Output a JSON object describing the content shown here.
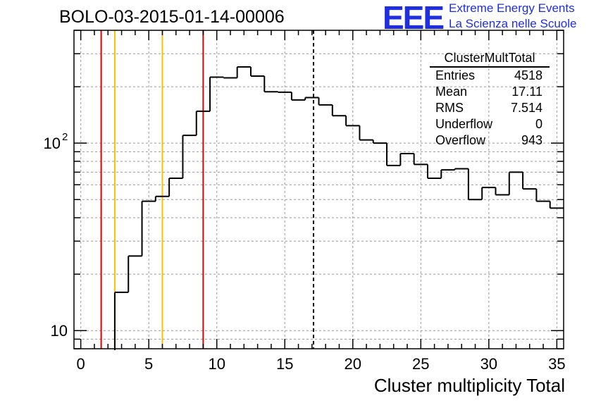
{
  "header": {
    "title": "BOLO-03-2015-01-14-00006",
    "logo_text": "EEE",
    "logo_line1": "Extreme Energy Events",
    "logo_line2": "La Scienza nelle Scuole"
  },
  "stats": {
    "name": "ClusterMultTotal",
    "rows": [
      {
        "label": "Entries",
        "value": "4518"
      },
      {
        "label": "Mean",
        "value": "17.11"
      },
      {
        "label": "RMS",
        "value": "7.514"
      },
      {
        "label": "Underflow",
        "value": "0"
      },
      {
        "label": "Overflow",
        "value": "943"
      }
    ]
  },
  "chart_data": {
    "type": "histogram",
    "xlabel": "Cluster multiplicity Total",
    "ylabel": "",
    "x_range": [
      -0.5,
      35.5
    ],
    "y_range": [
      8,
      400
    ],
    "y_scale": "log",
    "grid": true,
    "bin_width": 1,
    "bin_lows": [
      -0.5,
      0.5,
      1.5,
      2.5,
      3.5,
      4.5,
      5.5,
      6.5,
      7.5,
      8.5,
      9.5,
      10.5,
      11.5,
      12.5,
      13.5,
      14.5,
      15.5,
      16.5,
      17.5,
      18.5,
      19.5,
      20.5,
      21.5,
      22.5,
      23.5,
      24.5,
      25.5,
      26.5,
      27.5,
      28.5,
      29.5,
      30.5,
      31.5,
      32.5,
      33.5,
      34.5
    ],
    "counts": [
      0,
      0,
      0,
      16,
      25,
      49,
      52,
      65,
      110,
      148,
      225,
      223,
      255,
      228,
      188,
      187,
      170,
      175,
      160,
      140,
      124,
      104,
      100,
      76,
      88,
      77,
      65,
      72,
      73,
      50,
      58,
      53,
      70,
      57,
      49,
      45
    ],
    "x_ticks": [
      0,
      5,
      10,
      15,
      20,
      25,
      30,
      35
    ],
    "x_tick_labels": [
      "0",
      "5",
      "10",
      "15",
      "20",
      "25",
      "30",
      "35"
    ],
    "y_ticks": [
      10,
      100
    ],
    "y_tick_labels": [
      "10",
      "10",
      "2"
    ],
    "red_lines": [
      1.5,
      9
    ],
    "yellow_lines": [
      2.5,
      6
    ],
    "mean_line": 17.11,
    "colors": {
      "red": "#dd0000",
      "yellow": "#f5c400",
      "hist": "#000000",
      "grid": "#9a9a9a"
    }
  }
}
